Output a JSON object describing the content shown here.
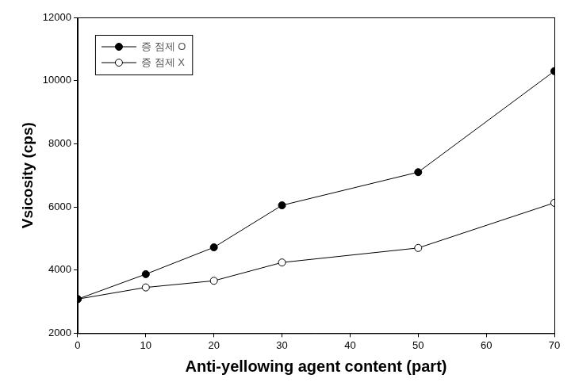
{
  "chart_data": {
    "type": "line",
    "x_label": "Anti-yellowing agent content (part)",
    "y_label": "Vsicosity (cps)",
    "x": [
      0,
      10,
      20,
      30,
      50,
      70
    ],
    "series": [
      {
        "name": "증 점제 O",
        "color": "#000000",
        "marker": "circle",
        "line_style": "solid",
        "values": [
          3080,
          3870,
          4720,
          6050,
          7100,
          10300
        ]
      },
      {
        "name": "증 점제 X",
        "color": "#000000",
        "marker": "open_circle",
        "line_style": "solid",
        "values": [
          3080,
          3450,
          3660,
          4240,
          4700,
          6130
        ]
      }
    ],
    "xlim": [
      0,
      70
    ],
    "xticks": [
      0,
      10,
      20,
      30,
      40,
      50,
      60,
      70
    ],
    "ylim": [
      2000,
      12000
    ],
    "yticks": [
      2000,
      4000,
      6000,
      8000,
      10000,
      12000
    ],
    "grid": false,
    "legend": "upper left"
  }
}
